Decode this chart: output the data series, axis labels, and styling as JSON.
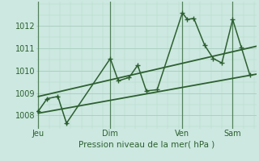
{
  "bg_color": "#cce8e0",
  "grid_color_major": "#a8ccbe",
  "grid_color_minor": "#b8d8cc",
  "line_color": "#2d6030",
  "xlabel": "Pression niveau de la mer( hPa )",
  "ylim": [
    1007.4,
    1013.1
  ],
  "yticks": [
    1008,
    1009,
    1010,
    1011,
    1012
  ],
  "xlim": [
    -0.1,
    10.1
  ],
  "xtick_labels": [
    "Jeu",
    "Dim",
    "Ven",
    "Sam"
  ],
  "xtick_positions": [
    0,
    3.33,
    6.67,
    9.0
  ],
  "vline_positions": [
    0,
    3.33,
    6.67,
    9.0
  ],
  "series_main": {
    "x": [
      0,
      0.4,
      0.9,
      1.3,
      3.33,
      3.7,
      4.2,
      4.6,
      5.0,
      5.5,
      6.67,
      6.9,
      7.2,
      7.7,
      8.1,
      8.5,
      9.0,
      9.4,
      9.8
    ],
    "y": [
      1008.2,
      1008.75,
      1008.85,
      1007.65,
      1010.55,
      1009.55,
      1009.7,
      1010.25,
      1009.1,
      1009.15,
      1012.6,
      1012.3,
      1012.35,
      1011.15,
      1010.55,
      1010.35,
      1012.3,
      1011.05,
      1009.8
    ],
    "marker": "+",
    "ms": 4,
    "lw": 1.1
  },
  "series_dot": {
    "x": [
      0,
      0.4,
      0.9,
      1.3
    ],
    "y": [
      1008.2,
      1008.75,
      1008.85,
      1007.65
    ],
    "marker": ".",
    "ms": 2.5,
    "lw": 0.7,
    "ls": "dotted"
  },
  "series_upper": {
    "x": [
      0,
      10.1
    ],
    "y": [
      1008.85,
      1011.1
    ],
    "lw": 1.3
  },
  "series_lower": {
    "x": [
      0,
      10.1
    ],
    "y": [
      1008.1,
      1009.85
    ],
    "lw": 1.3
  }
}
